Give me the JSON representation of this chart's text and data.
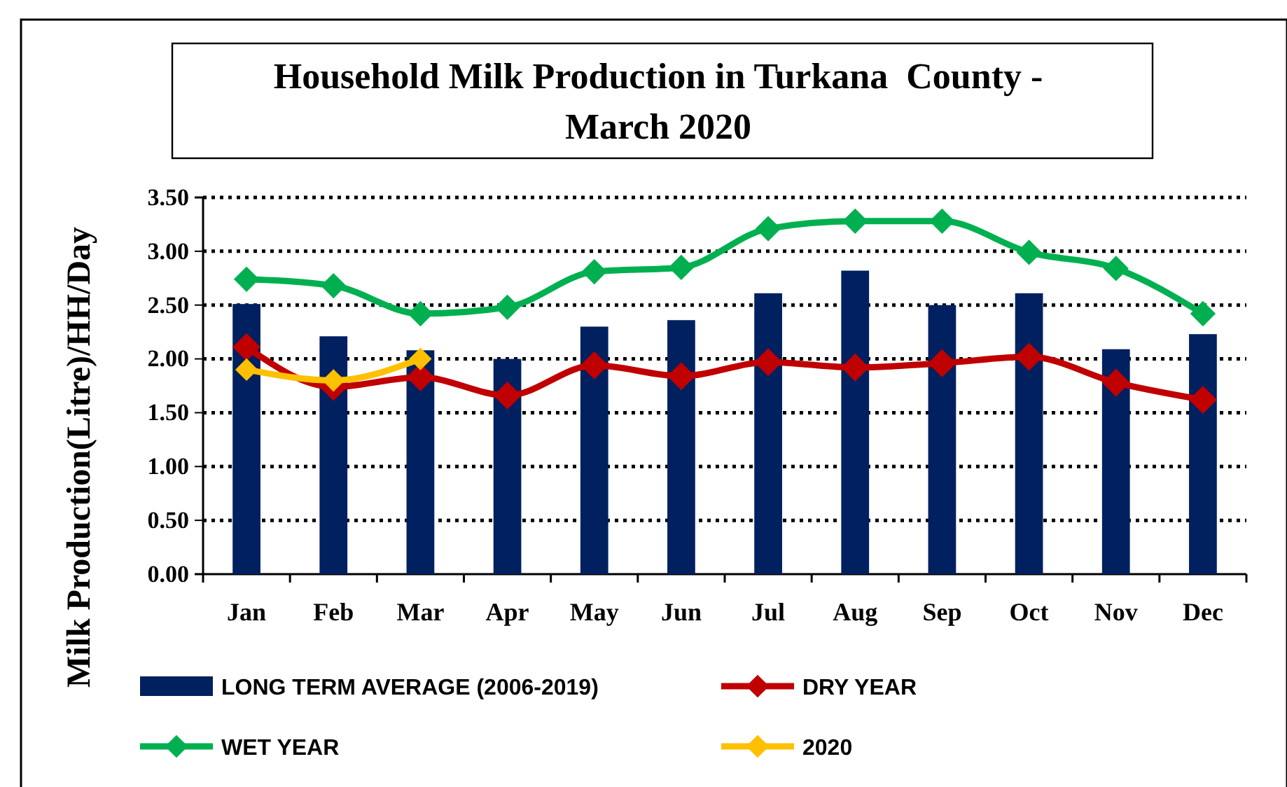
{
  "chart_data": {
    "type": "bar",
    "title": "Household Milk Production in Turkana  County - March 2020",
    "ylabel": "Milk Production(Litre)/HH/Day",
    "categories": [
      "Jan",
      "Feb",
      "Mar",
      "Apr",
      "May",
      "Jun",
      "Jul",
      "Aug",
      "Sep",
      "Oct",
      "Nov",
      "Dec"
    ],
    "series": [
      {
        "name": "LONG TERM AVERAGE (2006-2019)",
        "color": "#002060",
        "values": [
          2.51,
          2.21,
          2.08,
          2.0,
          2.3,
          2.36,
          2.61,
          2.82,
          2.5,
          2.61,
          2.09,
          2.23
        ]
      },
      {
        "name": "DRY YEAR",
        "type": "line",
        "color": "#c00000",
        "values": [
          2.11,
          1.74,
          1.83,
          1.66,
          1.94,
          1.84,
          1.97,
          1.92,
          1.96,
          2.02,
          1.78,
          1.62
        ]
      },
      {
        "name": "WET YEAR",
        "type": "line",
        "color": "#00b050",
        "values": [
          2.74,
          2.68,
          2.42,
          2.48,
          2.81,
          2.85,
          3.21,
          3.28,
          3.28,
          2.99,
          2.84,
          2.42
        ]
      },
      {
        "name": "2020",
        "type": "line",
        "color": "#ffc000",
        "values": [
          1.9,
          1.8,
          2.0,
          null,
          null,
          null,
          null,
          null,
          null,
          null,
          null,
          null
        ]
      }
    ],
    "ylim": [
      0,
      3.5
    ],
    "yticks": [
      {
        "value": 0,
        "label": "0.00"
      },
      {
        "value": 0.5,
        "label": "0.50"
      },
      {
        "value": 1,
        "label": "1.00"
      },
      {
        "value": 1.5,
        "label": "1.50"
      },
      {
        "value": 2,
        "label": "2.00"
      },
      {
        "value": 2.5,
        "label": "2.50"
      },
      {
        "value": 3,
        "label": "3.00"
      },
      {
        "value": 3.5,
        "label": "3.50"
      }
    ],
    "grid": "y",
    "legend": "bottom",
    "marker": "diamond",
    "line_style": "solid"
  }
}
